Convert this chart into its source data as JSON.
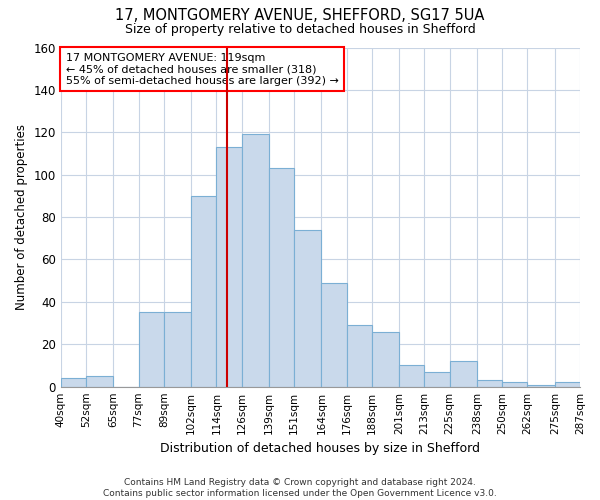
{
  "title1": "17, MONTGOMERY AVENUE, SHEFFORD, SG17 5UA",
  "title2": "Size of property relative to detached houses in Shefford",
  "xlabel": "Distribution of detached houses by size in Shefford",
  "ylabel": "Number of detached properties",
  "annotation_line1": "17 MONTGOMERY AVENUE: 119sqm",
  "annotation_line2": "← 45% of detached houses are smaller (318)",
  "annotation_line3": "55% of semi-detached houses are larger (392) →",
  "property_size": 119,
  "bin_edges": [
    40,
    52,
    65,
    77,
    89,
    102,
    114,
    126,
    139,
    151,
    164,
    176,
    188,
    201,
    213,
    225,
    238,
    250,
    262,
    275,
    287
  ],
  "bar_heights": [
    4,
    5,
    0,
    35,
    35,
    90,
    113,
    119,
    103,
    74,
    49,
    29,
    26,
    10,
    7,
    12,
    3,
    2,
    1,
    2
  ],
  "bar_color": "#c9d9eb",
  "bar_edge_color": "#7bafd4",
  "vline_color": "#cc0000",
  "grid_color": "#c8d4e4",
  "bg_color": "#ffffff",
  "footnote": "Contains HM Land Registry data © Crown copyright and database right 2024.\nContains public sector information licensed under the Open Government Licence v3.0.",
  "ylim": [
    0,
    160
  ],
  "yticks": [
    0,
    20,
    40,
    60,
    80,
    100,
    120,
    140,
    160
  ]
}
